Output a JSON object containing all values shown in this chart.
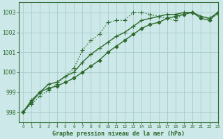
{
  "title": "Graphe pression niveau de la mer (hPa)",
  "bg_color": "#cce8e8",
  "grid_color": "#aacccc",
  "line_color": "#2d6a2d",
  "xlim": [
    -0.5,
    23
  ],
  "ylim": [
    997.5,
    1003.5
  ],
  "yticks": [
    998,
    999,
    1000,
    1001,
    1002,
    1003
  ],
  "xticks": [
    0,
    1,
    2,
    3,
    4,
    5,
    6,
    7,
    8,
    9,
    10,
    11,
    12,
    13,
    14,
    15,
    16,
    17,
    18,
    19,
    20,
    21,
    22,
    23
  ],
  "series": [
    {
      "x": [
        0,
        1,
        2,
        3,
        4,
        5,
        6,
        7,
        8,
        9,
        10,
        11,
        12,
        13,
        14,
        15,
        16,
        17,
        18,
        19,
        20,
        21,
        22,
        23
      ],
      "y": [
        998.0,
        998.4,
        998.8,
        999.1,
        999.4,
        999.8,
        1000.2,
        1001.1,
        1001.6,
        1001.9,
        1002.5,
        1002.6,
        1002.6,
        1003.0,
        1003.0,
        1002.9,
        1002.8,
        1002.7,
        1002.6,
        1003.0,
        1003.0,
        1002.8,
        1002.7,
        1002.9
      ],
      "linestyle": ":",
      "marker": "+",
      "markersize": 4,
      "lw": 1.0
    },
    {
      "x": [
        0,
        1,
        2,
        3,
        4,
        5,
        6,
        7,
        8,
        9,
        10,
        11,
        12,
        13,
        14,
        15,
        16,
        17,
        18,
        19,
        20,
        21,
        22,
        23
      ],
      "y": [
        998.0,
        998.6,
        999.0,
        999.4,
        999.5,
        999.8,
        1000.0,
        1000.5,
        1000.9,
        1001.2,
        1001.5,
        1001.8,
        1002.0,
        1002.3,
        1002.6,
        1002.7,
        1002.8,
        1002.9,
        1002.9,
        1003.0,
        1003.0,
        1002.8,
        1002.7,
        1003.0
      ],
      "linestyle": "-",
      "marker": "+",
      "markersize": 4,
      "lw": 1.0
    },
    {
      "x": [
        0,
        1,
        2,
        3,
        4,
        5,
        6,
        7,
        8,
        9,
        10,
        11,
        12,
        13,
        14,
        15,
        16,
        17,
        18,
        19,
        20,
        21,
        22,
        23
      ],
      "y": [
        998.0,
        998.5,
        999.0,
        999.2,
        999.3,
        999.5,
        999.7,
        1000.0,
        1000.3,
        1000.6,
        1001.0,
        1001.3,
        1001.6,
        1001.9,
        1002.2,
        1002.4,
        1002.5,
        1002.7,
        1002.8,
        1002.9,
        1003.0,
        1002.7,
        1002.6,
        1003.0
      ],
      "linestyle": "-",
      "marker": "D",
      "markersize": 2.5,
      "lw": 1.0
    }
  ]
}
